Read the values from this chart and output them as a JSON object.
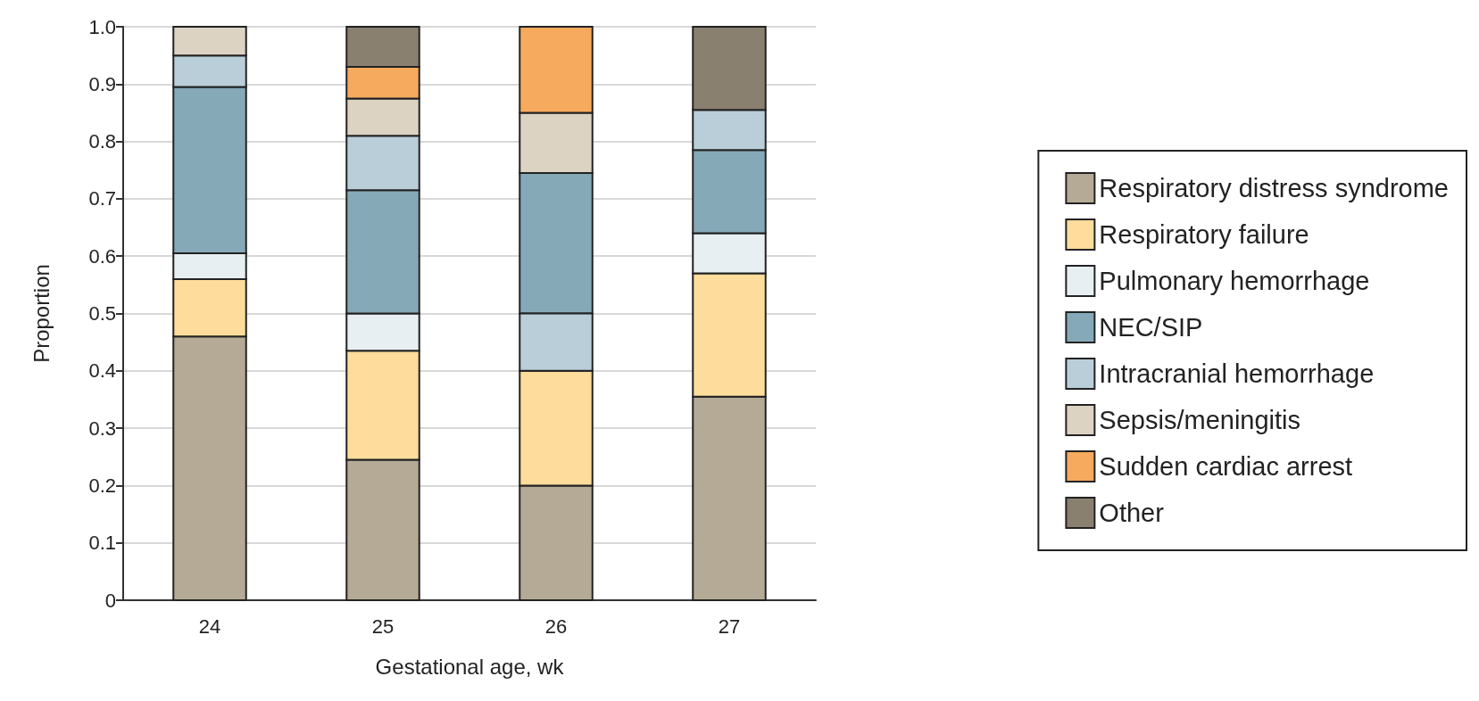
{
  "chart_data": {
    "type": "bar",
    "xlabel": "Gestational age, wk",
    "ylabel": "Proportion",
    "categories": [
      "24",
      "25",
      "26",
      "27"
    ],
    "ylim": [
      0,
      1
    ],
    "yticks": [
      0,
      0.1,
      0.2,
      0.3,
      0.4,
      0.5,
      0.6,
      0.7,
      0.8,
      0.9,
      {
        "value": 1,
        "label": "1.0"
      }
    ],
    "grid": "y",
    "legend": "right",
    "series": [
      {
        "name": "Respiratory distress syndrome",
        "color": "#b5aa96",
        "values": [
          0.46,
          0.245,
          0.2,
          0.355
        ],
        "base": [
          0,
          0,
          0,
          0
        ]
      },
      {
        "name": "Respiratory failure",
        "color": "#fddc9c",
        "values": [
          0.1,
          0.19,
          0.2,
          0.215
        ],
        "base": [
          0.46,
          0.245,
          0.2,
          0.355
        ]
      },
      {
        "name": "Pulmonary hemorrhage",
        "color": "#e8eff3",
        "values": [
          0.045,
          0.065,
          null,
          0.07
        ],
        "base": [
          0.56,
          0.435,
          null,
          0.57
        ]
      },
      {
        "name": "NEC/SIP",
        "color": "#86a9b8",
        "values": [
          0.29,
          0.215,
          0.245,
          0.145
        ],
        "base": [
          0.605,
          0.5,
          0.5,
          0.64
        ]
      },
      {
        "name": "Intracranial hemorrhage",
        "color": "#b9ced8",
        "values": [
          0.055,
          0.095,
          0.1,
          0.07
        ],
        "base": [
          0.895,
          0.715,
          0.4,
          0.785
        ]
      },
      {
        "name": "Sepsis/meningitis",
        "color": "#dcd3c3",
        "values": [
          0.05,
          0.065,
          0.105,
          null
        ],
        "base": [
          0.95,
          0.81,
          0.745,
          null
        ]
      },
      {
        "name": "Sudden cardiac arrest",
        "color": "#f6aa5e",
        "values": [
          null,
          0.055,
          0.15,
          null
        ],
        "base": [
          null,
          0.875,
          0.85,
          null
        ]
      },
      {
        "name": "Other",
        "color": "#8a8070",
        "values": [
          null,
          0.07,
          null,
          0.145
        ],
        "base": [
          null,
          0.93,
          null,
          0.855
        ]
      }
    ]
  }
}
